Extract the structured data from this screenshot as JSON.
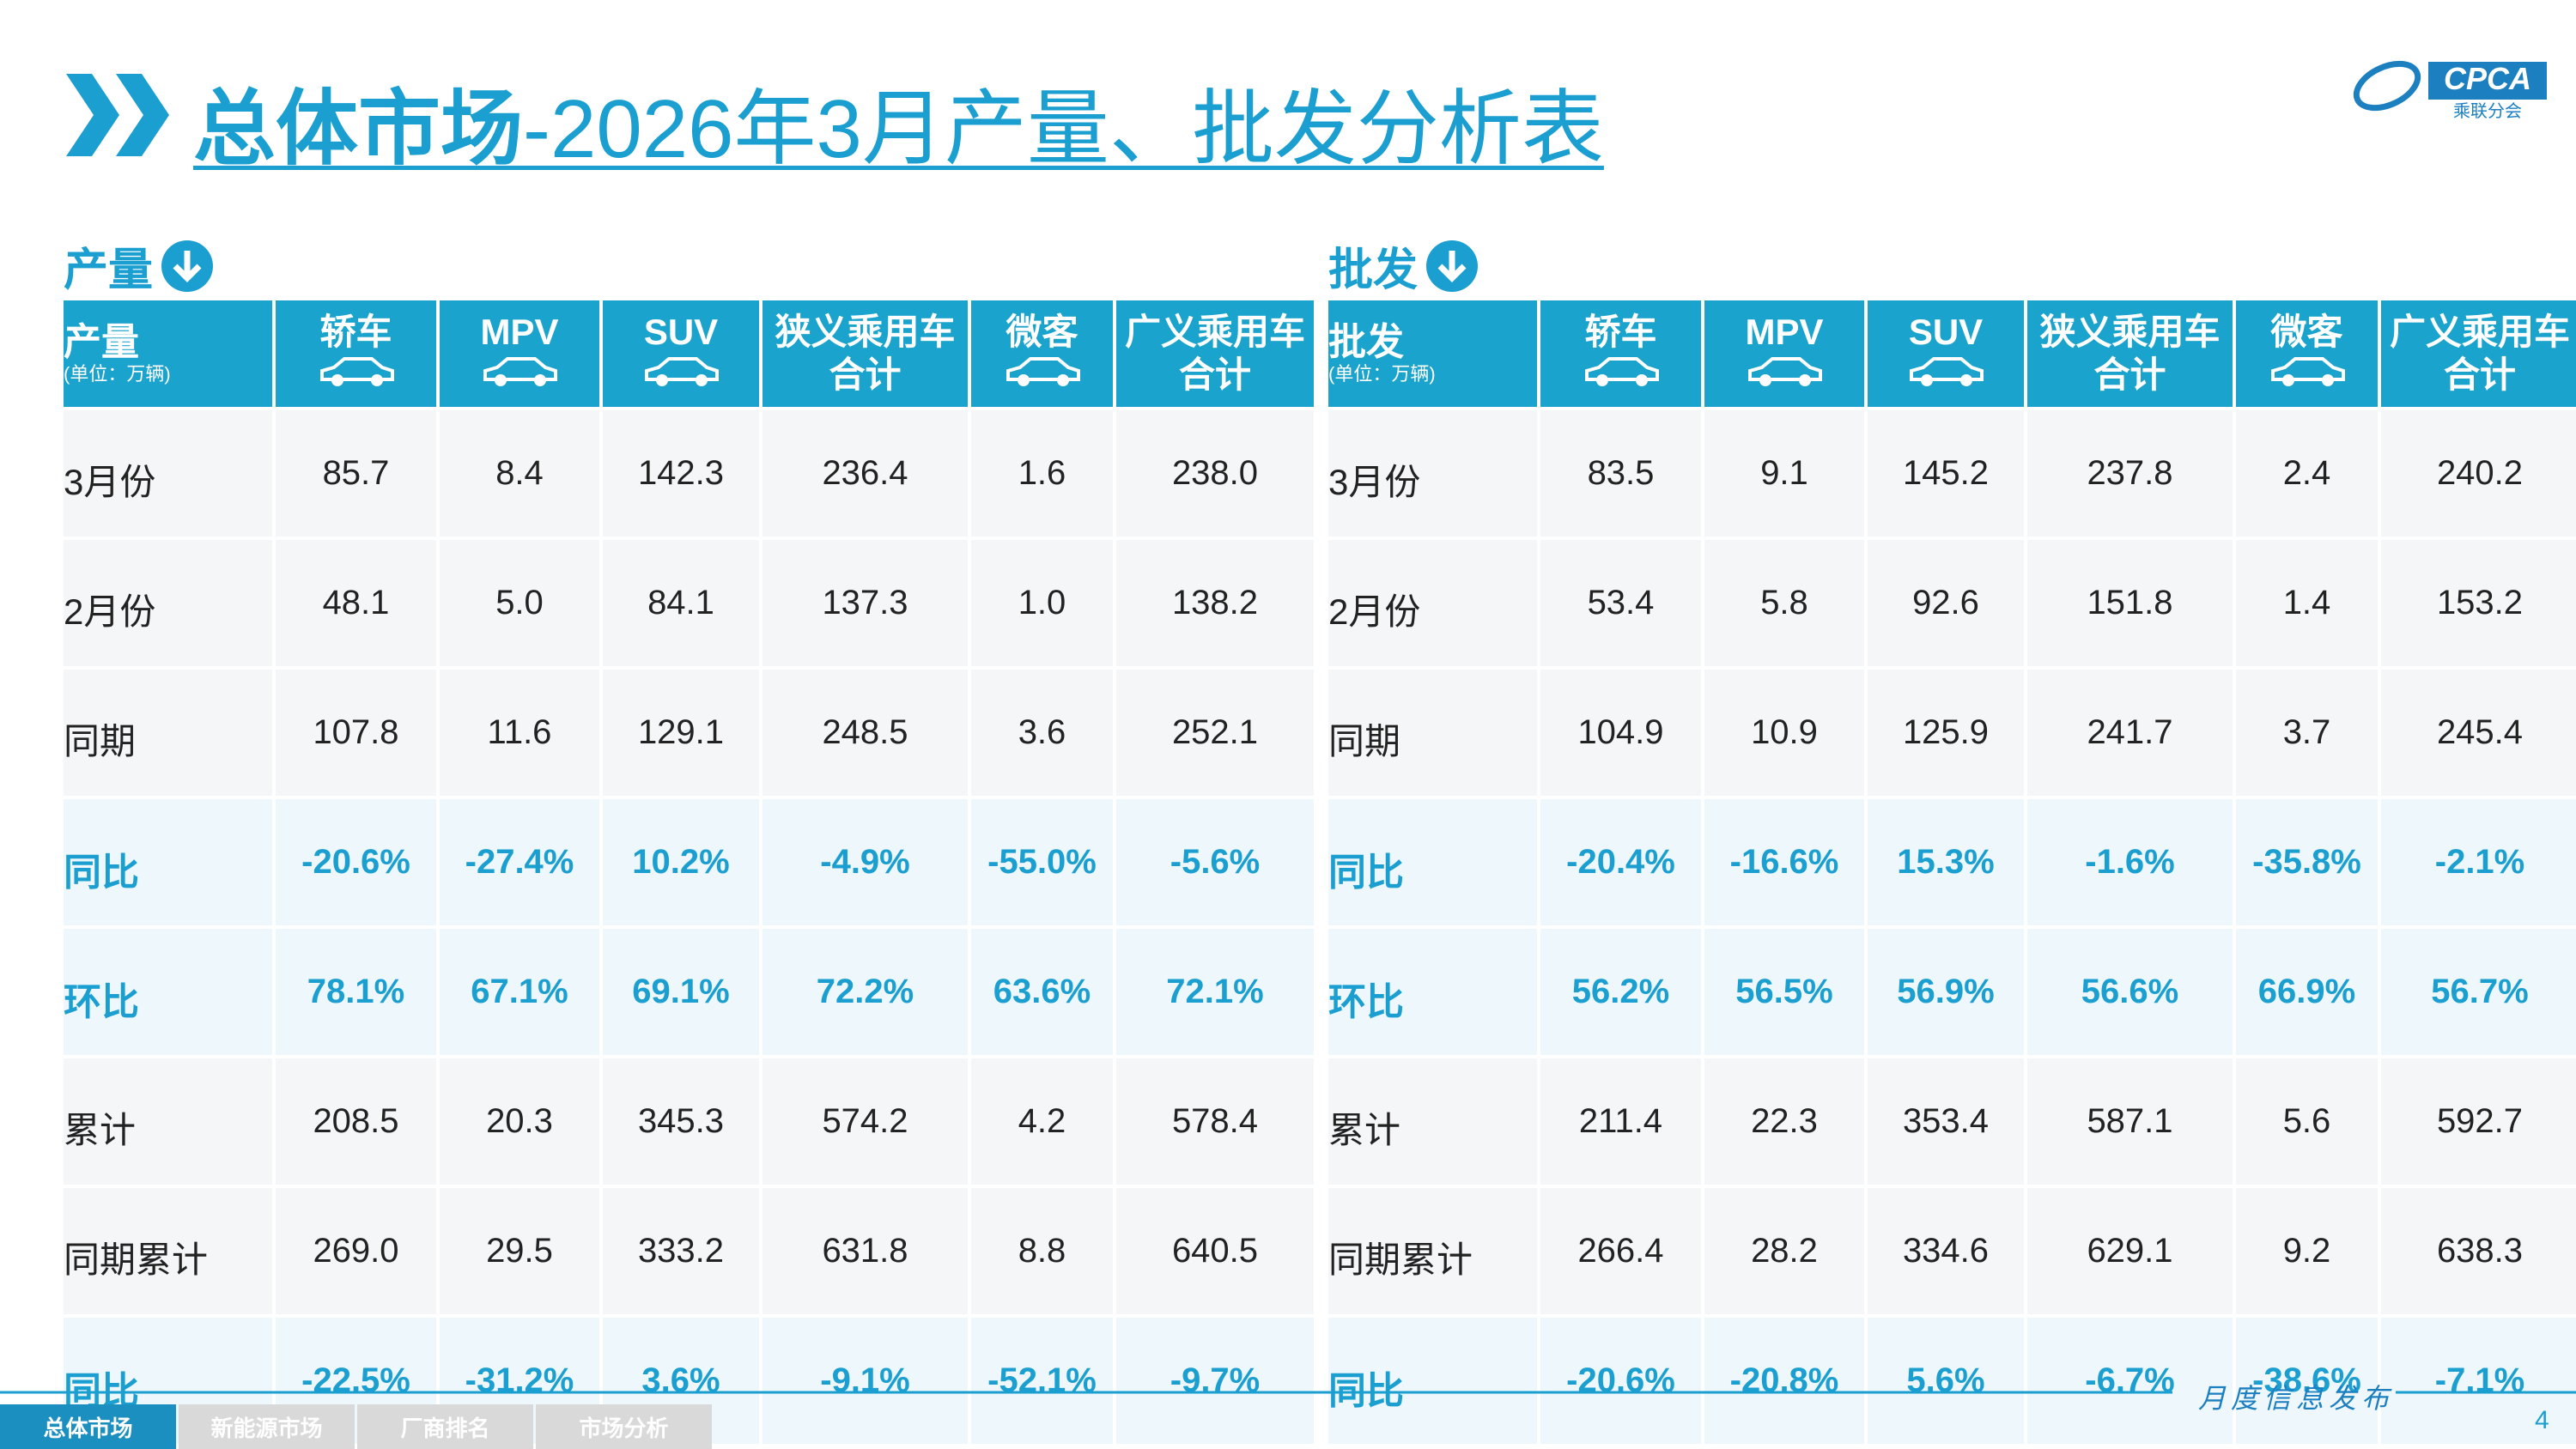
{
  "header": {
    "title_bold": "总体市场",
    "title_rest": "-2026年3月产量、批发分析表",
    "logo_text": "CPCA",
    "logo_sub": "乘联分会"
  },
  "tables": [
    {
      "section": "产量",
      "corner_label": "产量",
      "unit": "(单位：万辆)",
      "columns": [
        [
          "轿车"
        ],
        [
          "MPV"
        ],
        [
          "SUV"
        ],
        [
          "狭义乘用车",
          "合计"
        ],
        [
          "微客"
        ],
        [
          "广义乘用车",
          "合计"
        ]
      ],
      "rows": [
        {
          "label": "3月份",
          "values": [
            "85.7",
            "8.4",
            "142.3",
            "236.4",
            "1.6",
            "238.0"
          ]
        },
        {
          "label": "2月份",
          "values": [
            "48.1",
            "5.0",
            "84.1",
            "137.3",
            "1.0",
            "138.2"
          ]
        },
        {
          "label": "同期",
          "values": [
            "107.8",
            "11.6",
            "129.1",
            "248.5",
            "3.6",
            "252.1"
          ]
        },
        {
          "label": "同比",
          "values": [
            "-20.6%",
            "-27.4%",
            "10.2%",
            "-4.9%",
            "-55.0%",
            "-5.6%"
          ]
        },
        {
          "label": "环比",
          "values": [
            "78.1%",
            "67.1%",
            "69.1%",
            "72.2%",
            "63.6%",
            "72.1%"
          ]
        },
        {
          "label": "累计",
          "values": [
            "208.5",
            "20.3",
            "345.3",
            "574.2",
            "4.2",
            "578.4"
          ]
        },
        {
          "label": "同期累计",
          "values": [
            "269.0",
            "29.5",
            "333.2",
            "631.8",
            "8.8",
            "640.5"
          ]
        },
        {
          "label": "同比",
          "values": [
            "-22.5%",
            "-31.2%",
            "3.6%",
            "-9.1%",
            "-52.1%",
            "-9.7%"
          ]
        }
      ]
    },
    {
      "section": "批发",
      "corner_label": "批发",
      "unit": "(单位：万辆)",
      "columns": [
        [
          "轿车"
        ],
        [
          "MPV"
        ],
        [
          "SUV"
        ],
        [
          "狭义乘用车",
          "合计"
        ],
        [
          "微客"
        ],
        [
          "广义乘用车",
          "合计"
        ]
      ],
      "rows": [
        {
          "label": "3月份",
          "values": [
            "83.5",
            "9.1",
            "145.2",
            "237.8",
            "2.4",
            "240.2"
          ]
        },
        {
          "label": "2月份",
          "values": [
            "53.4",
            "5.8",
            "92.6",
            "151.8",
            "1.4",
            "153.2"
          ]
        },
        {
          "label": "同期",
          "values": [
            "104.9",
            "10.9",
            "125.9",
            "241.7",
            "3.7",
            "245.4"
          ]
        },
        {
          "label": "同比",
          "values": [
            "-20.4%",
            "-16.6%",
            "15.3%",
            "-1.6%",
            "-35.8%",
            "-2.1%"
          ]
        },
        {
          "label": "环比",
          "values": [
            "56.2%",
            "56.5%",
            "56.9%",
            "56.6%",
            "66.9%",
            "56.7%"
          ]
        },
        {
          "label": "累计",
          "values": [
            "211.4",
            "22.3",
            "353.4",
            "587.1",
            "5.6",
            "592.7"
          ]
        },
        {
          "label": "同期累计",
          "values": [
            "266.4",
            "28.2",
            "334.6",
            "629.1",
            "9.2",
            "638.3"
          ]
        },
        {
          "label": "同比",
          "values": [
            "-20.6%",
            "-20.8%",
            "5.6%",
            "-6.7%",
            "-38.6%",
            "-7.1%"
          ]
        }
      ]
    }
  ],
  "footer": {
    "tagline": "月度信息发布",
    "page": "4",
    "tabs": [
      "总体市场",
      "新能源市场",
      "厂商排名",
      "市场分析"
    ]
  }
}
